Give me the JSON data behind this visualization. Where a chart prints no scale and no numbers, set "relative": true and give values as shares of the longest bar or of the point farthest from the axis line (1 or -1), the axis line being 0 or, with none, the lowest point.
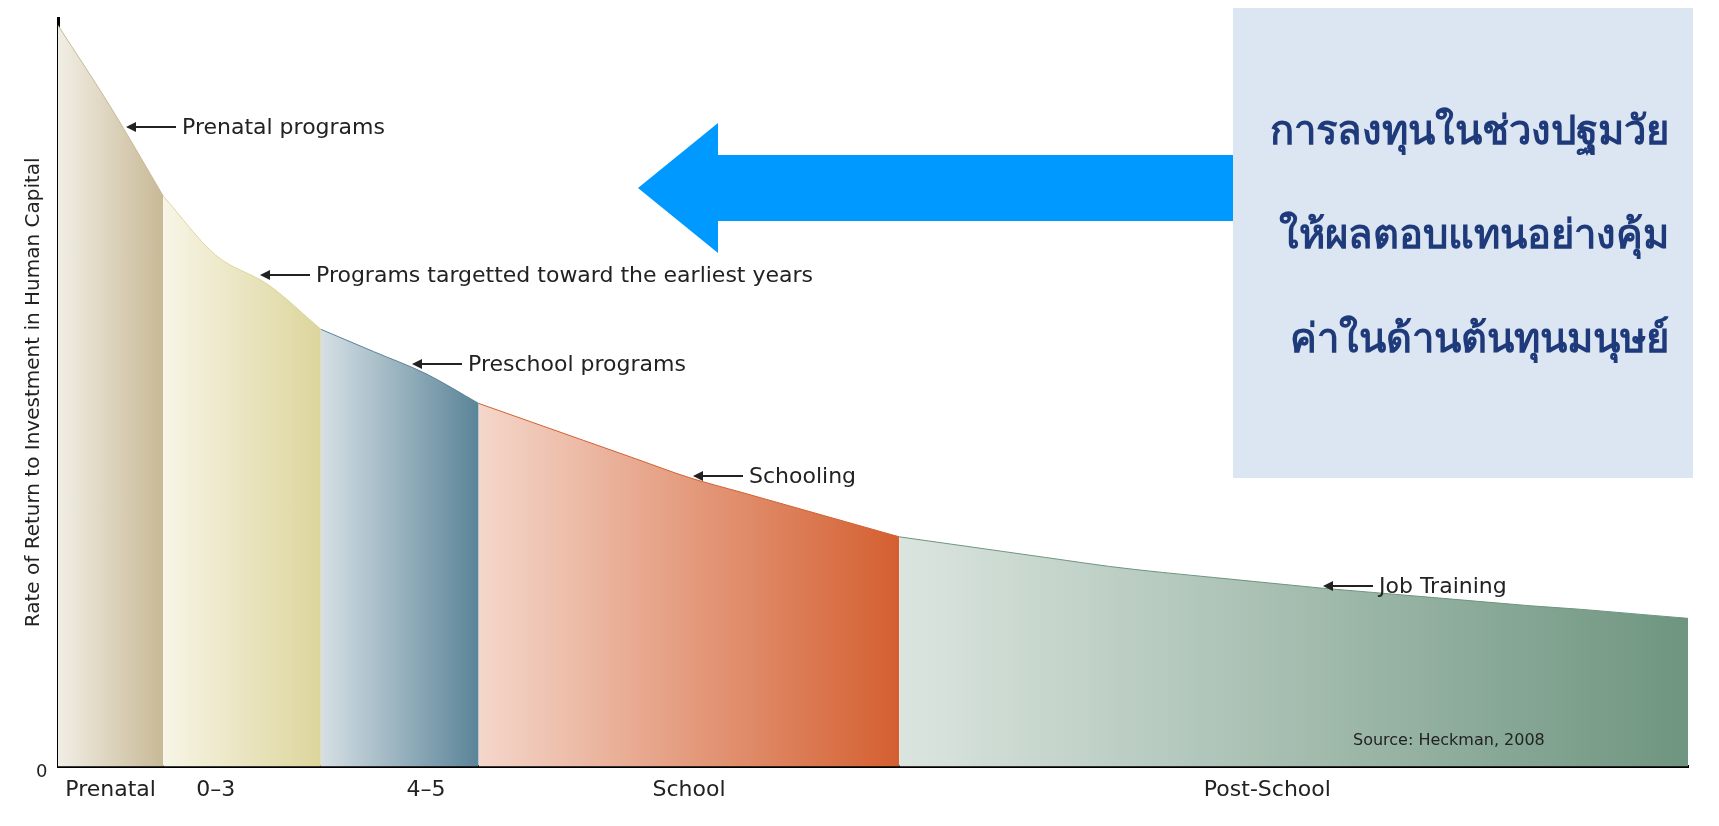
{
  "chart_data": {
    "type": "area",
    "relative": true,
    "title": "การลงทุนในช่วงปฐมวัยให้ผลตอบแทนอย่างคุ้มค่าในด้านต้นทุนมนุษย์",
    "ylabel": "Rate of Return to Investment in Human Capital",
    "categories": [
      null,
      "Prenatal",
      null,
      "0–3",
      null,
      null,
      null,
      "4–5",
      null,
      null,
      null,
      null,
      "School",
      null,
      null,
      null,
      null,
      null,
      null,
      null,
      null,
      null,
      null,
      "Post-School",
      null,
      null,
      null,
      null,
      null,
      null,
      null,
      null
    ],
    "series": [
      {
        "color": "#c8b996",
        "values": [
          1.0,
          0.89,
          0.77,
          null,
          null,
          null,
          null,
          null,
          null,
          null,
          null,
          null,
          null,
          null,
          null,
          null,
          null,
          null,
          null,
          null,
          null,
          null,
          null,
          null,
          null,
          null,
          null,
          null,
          null,
          null,
          null,
          null
        ]
      },
      {
        "color": "#ddd59c",
        "values": [
          null,
          null,
          0.77,
          0.69,
          0.65,
          0.59,
          null,
          null,
          null,
          null,
          null,
          null,
          null,
          null,
          null,
          null,
          null,
          null,
          null,
          null,
          null,
          null,
          null,
          null,
          null,
          null,
          null,
          null,
          null,
          null,
          null,
          null
        ]
      },
      {
        "color": "#5a8498",
        "values": [
          null,
          null,
          null,
          null,
          null,
          0.59,
          0.56,
          0.53,
          0.49,
          null,
          null,
          null,
          null,
          null,
          null,
          null,
          null,
          null,
          null,
          null,
          null,
          null,
          null,
          null,
          null,
          null,
          null,
          null,
          null,
          null,
          null,
          null
        ]
      },
      {
        "color": "#d45f30",
        "values": [
          null,
          null,
          null,
          null,
          null,
          null,
          null,
          null,
          0.49,
          0.465,
          0.44,
          0.415,
          0.39,
          0.37,
          0.35,
          0.33,
          0.31,
          null,
          null,
          null,
          null,
          null,
          null,
          null,
          null,
          null,
          null,
          null,
          null,
          null,
          null,
          null
        ]
      },
      {
        "color": "#6e9580",
        "values": [
          null,
          null,
          null,
          null,
          null,
          null,
          null,
          null,
          null,
          null,
          null,
          null,
          null,
          null,
          null,
          null,
          0.31,
          0.3,
          0.29,
          0.28,
          0.27,
          0.262,
          0.255,
          0.248,
          0.241,
          0.235,
          0.229,
          0.223,
          0.217,
          0.212,
          0.206,
          0.2
        ]
      }
    ],
    "annotations": [
      "Prenatal programs",
      "Programs targetted toward the earliest years",
      "Preschool programs",
      "Schooling",
      "Job Training",
      "Source: Heckman, 2008",
      "0"
    ]
  }
}
